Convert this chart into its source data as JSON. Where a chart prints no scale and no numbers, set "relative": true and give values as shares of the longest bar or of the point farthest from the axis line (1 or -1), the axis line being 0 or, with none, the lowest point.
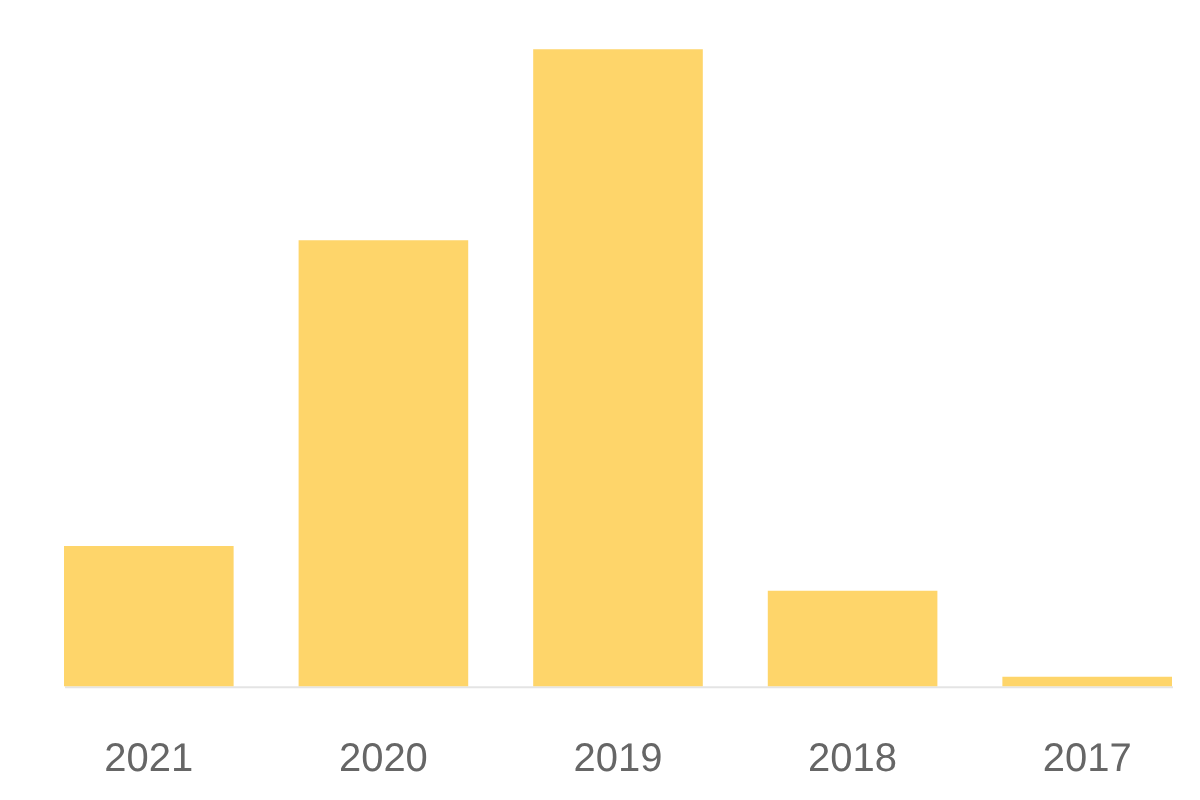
{
  "chart_data": {
    "type": "bar",
    "relative": true,
    "color": "#fed56a",
    "categories": [
      "2021",
      "2020",
      "2019",
      "2018",
      "2017"
    ],
    "values": [
      0.22,
      0.7,
      1,
      0.15,
      0.015
    ]
  }
}
